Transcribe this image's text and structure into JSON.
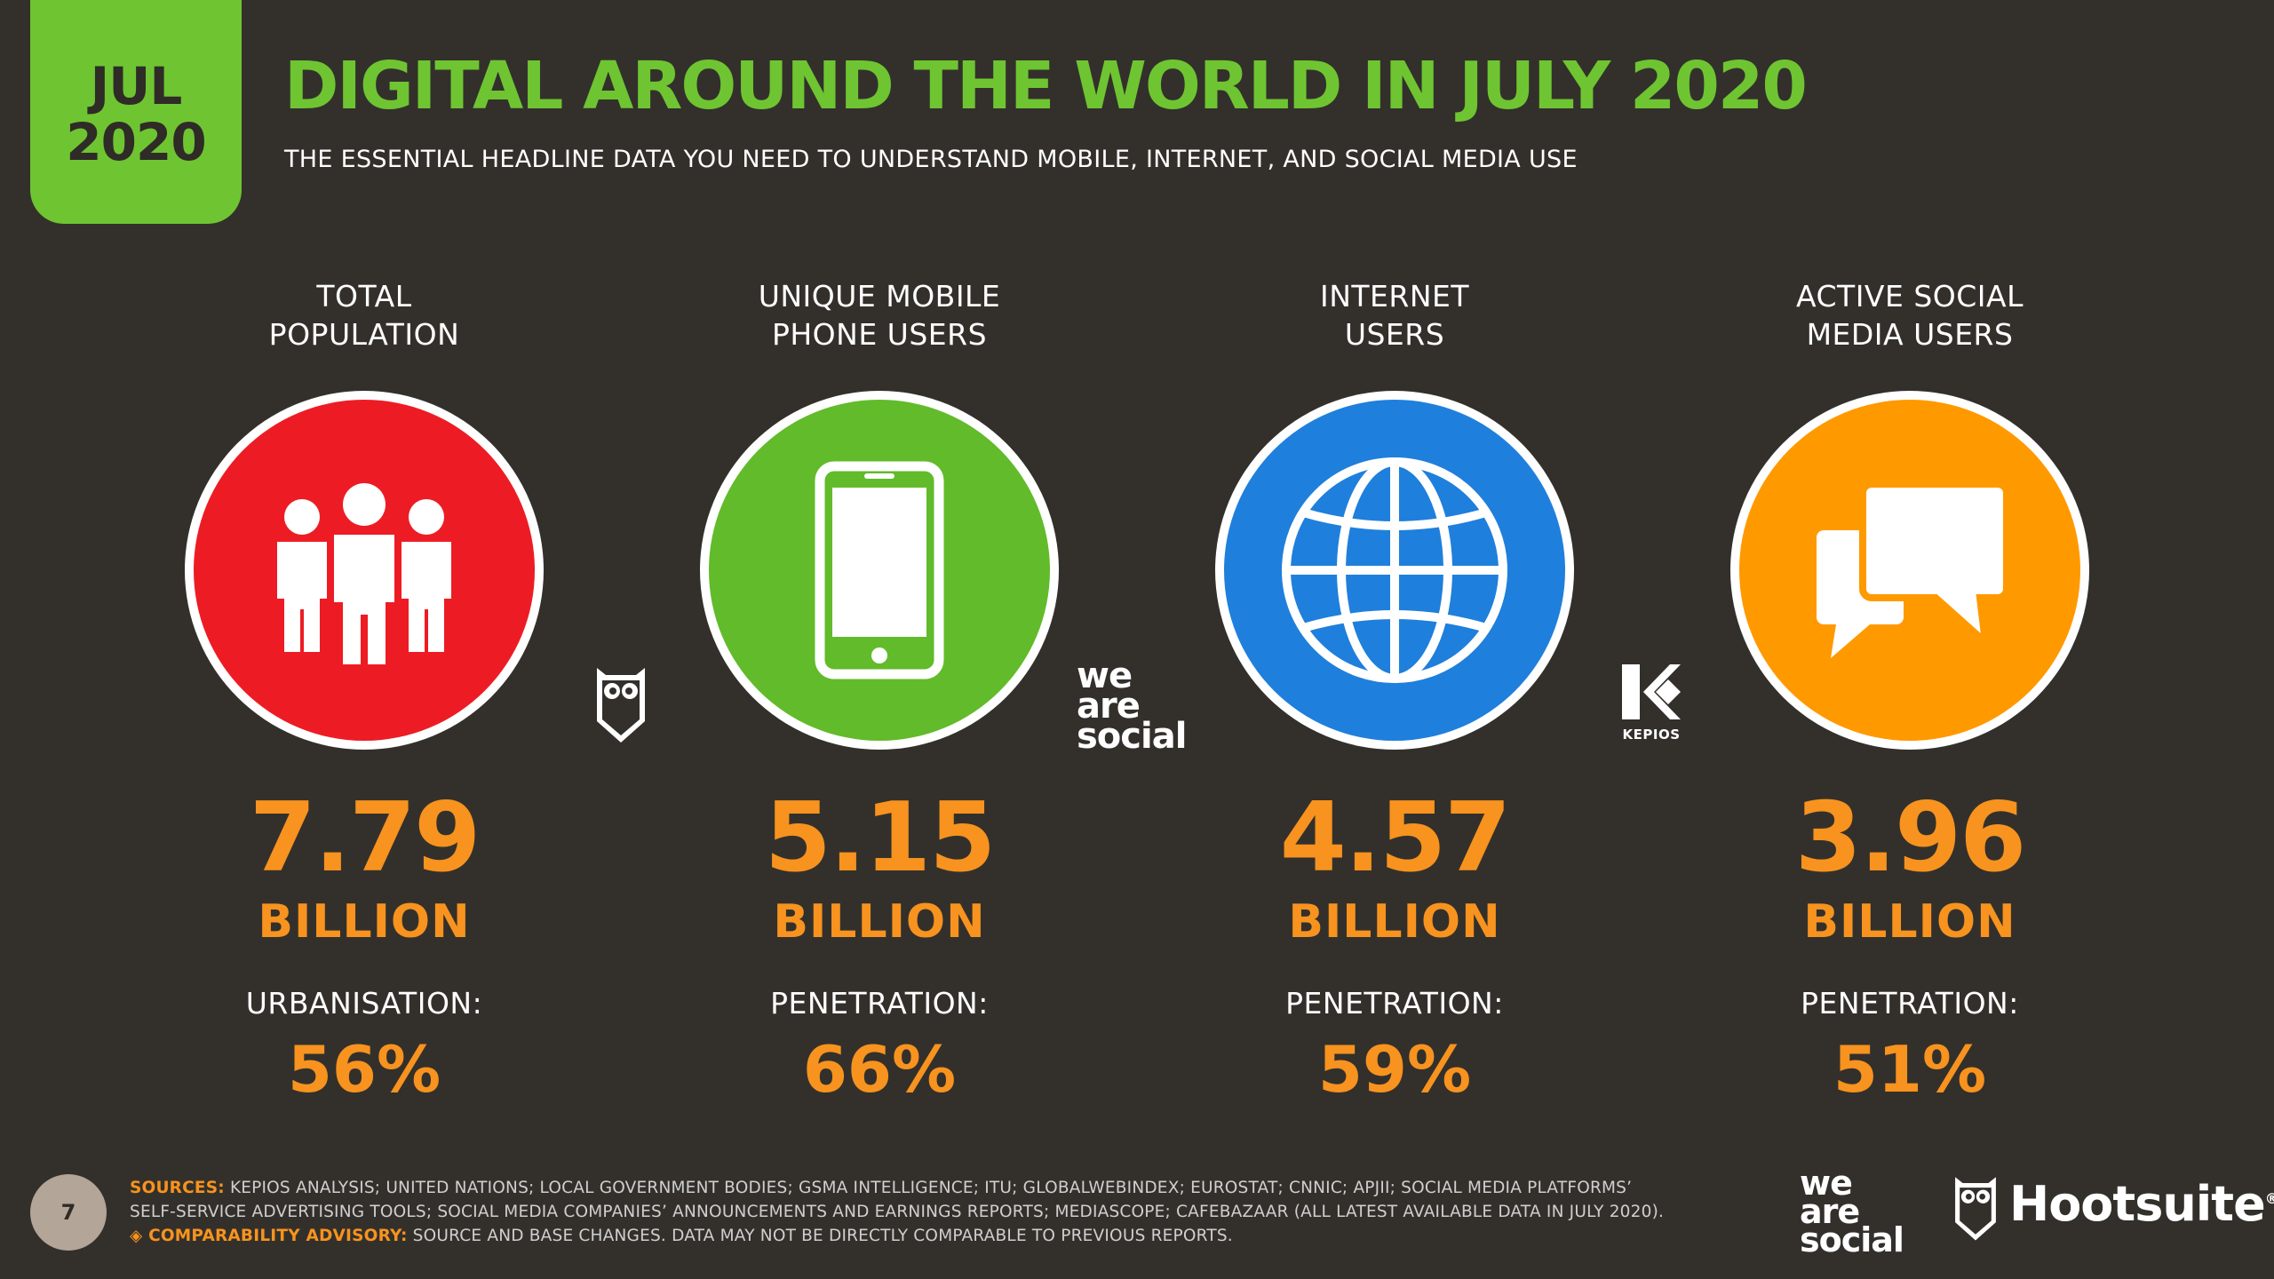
{
  "header": {
    "badge_month": "JUL",
    "badge_year": "2020",
    "title": "DIGITAL AROUND THE WORLD IN JULY 2020",
    "subtitle": "THE ESSENTIAL HEADLINE DATA YOU NEED TO UNDERSTAND MOBILE, INTERNET, AND SOCIAL MEDIA USE"
  },
  "stats": [
    {
      "label_line1": "TOTAL",
      "label_line2": "POPULATION",
      "icon": "people-icon",
      "color": "#ed1c24",
      "value": "7.79",
      "unit": "BILLION",
      "sublabel": "URBANISATION:",
      "percent": "56%"
    },
    {
      "label_line1": "UNIQUE MOBILE",
      "label_line2": "PHONE USERS",
      "icon": "mobile-phone-icon",
      "color": "#62bb2a",
      "value": "5.15",
      "unit": "BILLION",
      "sublabel": "PENETRATION:",
      "percent": "66%"
    },
    {
      "label_line1": "INTERNET",
      "label_line2": "USERS",
      "icon": "globe-icon",
      "color": "#1f7fdc",
      "value": "4.57",
      "unit": "BILLION",
      "sublabel": "PENETRATION:",
      "percent": "59%"
    },
    {
      "label_line1": "ACTIVE SOCIAL",
      "label_line2": "MEDIA USERS",
      "icon": "chat-bubbles-icon",
      "color": "#ff9900",
      "value": "3.96",
      "unit": "BILLION",
      "sublabel": "PENETRATION:",
      "percent": "51%"
    }
  ],
  "partners": {
    "we_are_social_line1": "we",
    "we_are_social_line2": "are",
    "we_are_social_line3": "social",
    "kepios": "KEPIOS"
  },
  "footer": {
    "page_number": "7",
    "sources_label": "SOURCES:",
    "sources_line1": " KEPIOS ANALYSIS; UNITED NATIONS; LOCAL GOVERNMENT BODIES; GSMA INTELLIGENCE; ITU; GLOBALWEBINDEX; EUROSTAT; CNNIC; APJII; SOCIAL MEDIA PLATFORMS’",
    "sources_line2": "SELF-SERVICE ADVERTISING TOOLS; SOCIAL MEDIA COMPANIES’ ANNOUNCEMENTS AND EARNINGS REPORTS; MEDIASCOPE; CAFEBAZAAR (ALL LATEST AVAILABLE DATA IN JULY 2020).",
    "advisory_label": "COMPARABILITY ADVISORY:",
    "advisory_text": " SOURCE AND BASE CHANGES. DATA MAY NOT BE DIRECTLY COMPARABLE TO PREVIOUS REPORTS.",
    "brand_was_line1": "we",
    "brand_was_line2": "are",
    "brand_was_line3": "social",
    "brand_hootsuite": "Hootsuite",
    "brand_hootsuite_reg": "®"
  }
}
